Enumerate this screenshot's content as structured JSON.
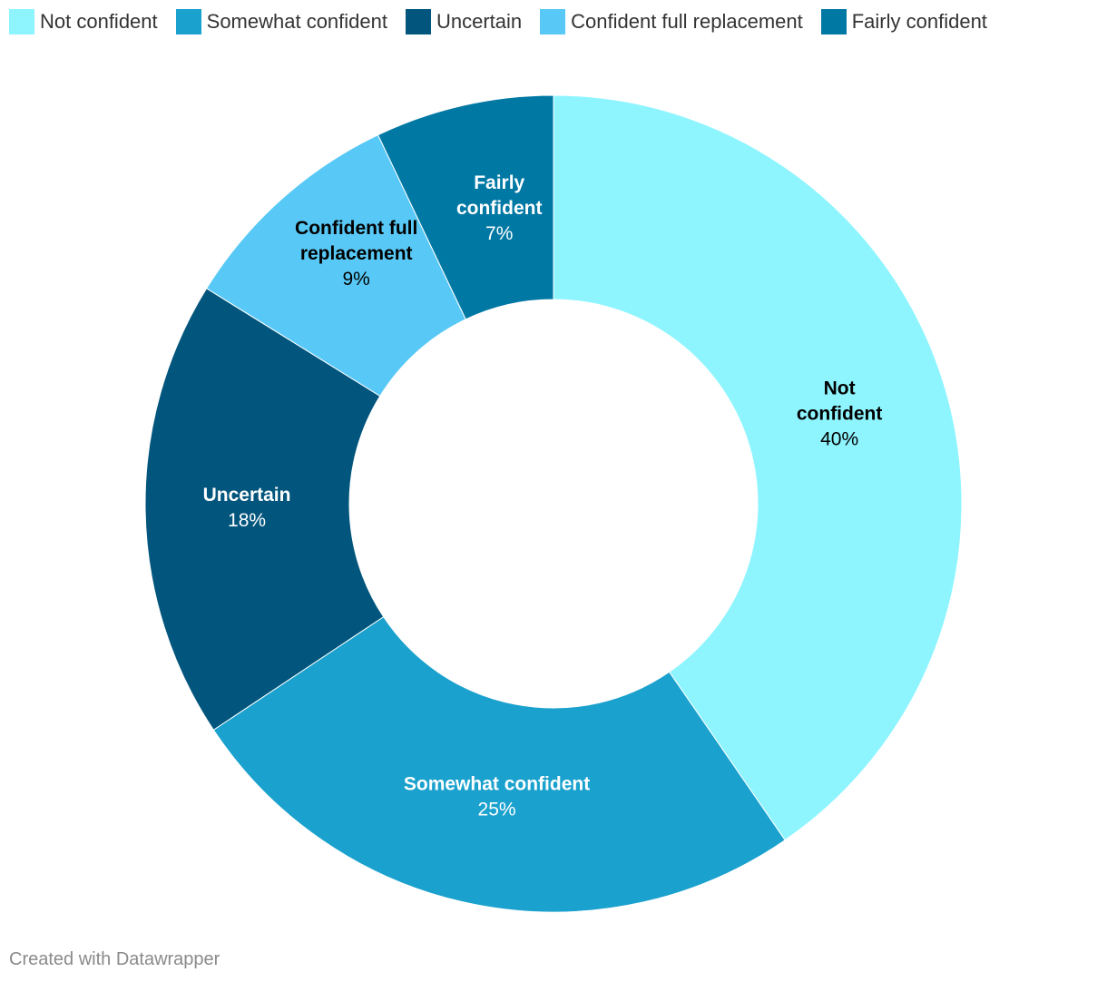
{
  "chart_data": {
    "type": "pie",
    "donut": true,
    "legend_position": "top-left",
    "categories": [
      "Not confident",
      "Somewhat confident",
      "Uncertain",
      "Confident full replacement",
      "Fairly confident"
    ],
    "values": [
      40,
      25,
      18,
      9,
      7
    ],
    "unit": "%",
    "colors": [
      "#8ef5ff",
      "#1aa1cd",
      "#02557c",
      "#58c9f6",
      "#0078a4"
    ],
    "label_colors": [
      "#000000",
      "#ffffff",
      "#ffffff",
      "#000000",
      "#ffffff"
    ],
    "slice_labels": [
      [
        "Not",
        "confident"
      ],
      [
        "Somewhat confident"
      ],
      [
        "Uncertain"
      ],
      [
        "Confident full",
        "replacement"
      ],
      [
        "Fairly",
        "confident"
      ]
    ],
    "value_labels": [
      "40%",
      "25%",
      "18%",
      "9%",
      "7%"
    ]
  },
  "legend": {
    "items": [
      {
        "label": "Not confident",
        "color": "#8ef5ff"
      },
      {
        "label": "Somewhat confident",
        "color": "#1aa1cd"
      },
      {
        "label": "Uncertain",
        "color": "#02557c"
      },
      {
        "label": "Confident full replacement",
        "color": "#58c9f6"
      },
      {
        "label": "Fairly confident",
        "color": "#0078a4"
      }
    ]
  },
  "footer": {
    "credit": "Created with Datawrapper"
  }
}
